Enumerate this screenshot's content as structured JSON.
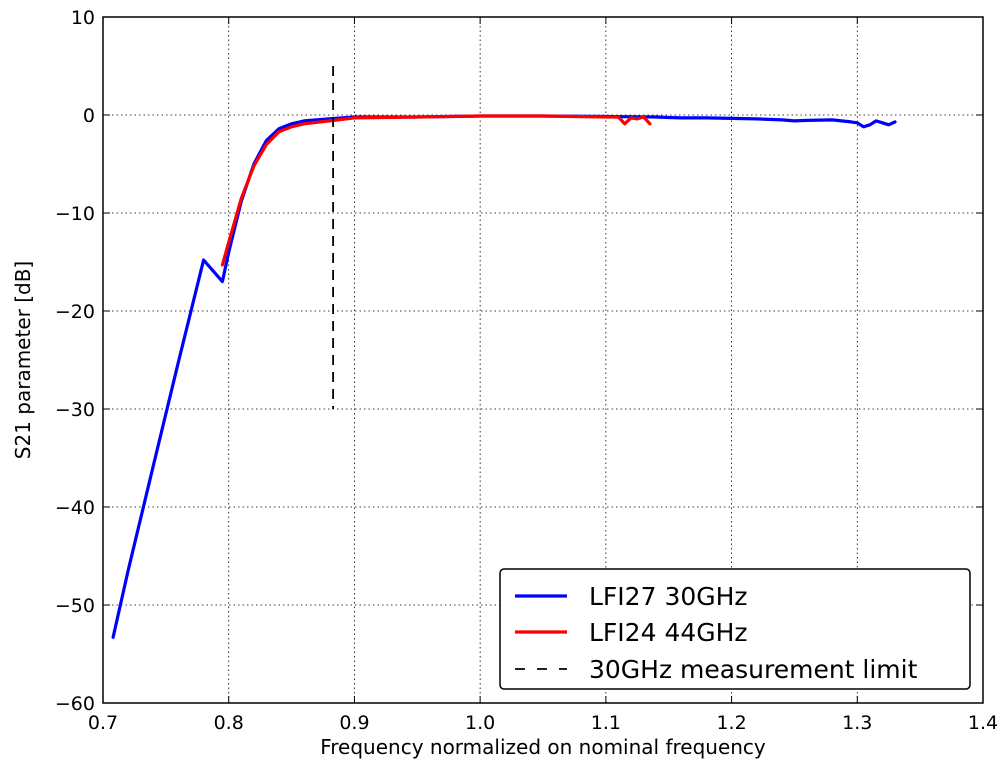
{
  "chart_data": {
    "type": "line",
    "xlabel": "Frequency normalized on nominal frequency",
    "ylabel": "S21 parameter [dB]",
    "xlim": [
      0.7,
      1.4
    ],
    "ylim": [
      -60,
      10
    ],
    "x_ticks": [
      0.7,
      0.8,
      0.9,
      1.0,
      1.1,
      1.2,
      1.3,
      1.4
    ],
    "x_tick_labels": [
      "0.7",
      "0.8",
      "0.9",
      "1.0",
      "1.1",
      "1.2",
      "1.3",
      "1.4"
    ],
    "y_ticks": [
      -60,
      -50,
      -40,
      -30,
      -20,
      -10,
      0,
      10
    ],
    "y_tick_labels": [
      "−60",
      "−50",
      "−40",
      "−30",
      "−20",
      "−10",
      "0",
      "10"
    ],
    "grid": true,
    "legend_position": "bottom-right",
    "series": [
      {
        "name": "LFI27 30GHz",
        "color": "#0000ff",
        "style": "solid",
        "x": [
          0.708,
          0.72,
          0.74,
          0.76,
          0.78,
          0.795,
          0.8,
          0.81,
          0.82,
          0.83,
          0.84,
          0.85,
          0.86,
          0.88,
          0.9,
          0.95,
          1.0,
          1.05,
          1.1,
          1.14,
          1.15,
          1.16,
          1.18,
          1.2,
          1.22,
          1.24,
          1.25,
          1.26,
          1.28,
          1.295,
          1.3,
          1.305,
          1.31,
          1.315,
          1.32,
          1.325,
          1.33
        ],
        "y": [
          -53.3,
          -46.5,
          -35.8,
          -25.2,
          -14.8,
          -17.0,
          -14.0,
          -8.8,
          -5.0,
          -2.6,
          -1.4,
          -0.9,
          -0.6,
          -0.4,
          -0.2,
          -0.2,
          -0.1,
          -0.1,
          -0.15,
          -0.2,
          -0.25,
          -0.3,
          -0.3,
          -0.35,
          -0.4,
          -0.5,
          -0.6,
          -0.55,
          -0.5,
          -0.7,
          -0.8,
          -1.2,
          -1.0,
          -0.6,
          -0.8,
          -1.0,
          -0.7
        ]
      },
      {
        "name": "LFI24 44GHz",
        "color": "#ff0000",
        "style": "solid",
        "x": [
          0.795,
          0.8,
          0.81,
          0.82,
          0.83,
          0.84,
          0.85,
          0.86,
          0.88,
          0.9,
          0.95,
          1.0,
          1.05,
          1.1,
          1.11,
          1.115,
          1.12,
          1.125,
          1.13,
          1.135
        ],
        "y": [
          -15.3,
          -13.0,
          -8.5,
          -5.2,
          -3.0,
          -1.7,
          -1.2,
          -0.9,
          -0.6,
          -0.3,
          -0.2,
          -0.1,
          -0.1,
          -0.2,
          -0.2,
          -0.9,
          -0.3,
          -0.4,
          -0.2,
          -0.9
        ]
      },
      {
        "name": "30GHz measurement limit",
        "color": "#000000",
        "style": "dashed",
        "x": [
          0.883,
          0.883
        ],
        "y": [
          5,
          -30
        ]
      }
    ]
  }
}
